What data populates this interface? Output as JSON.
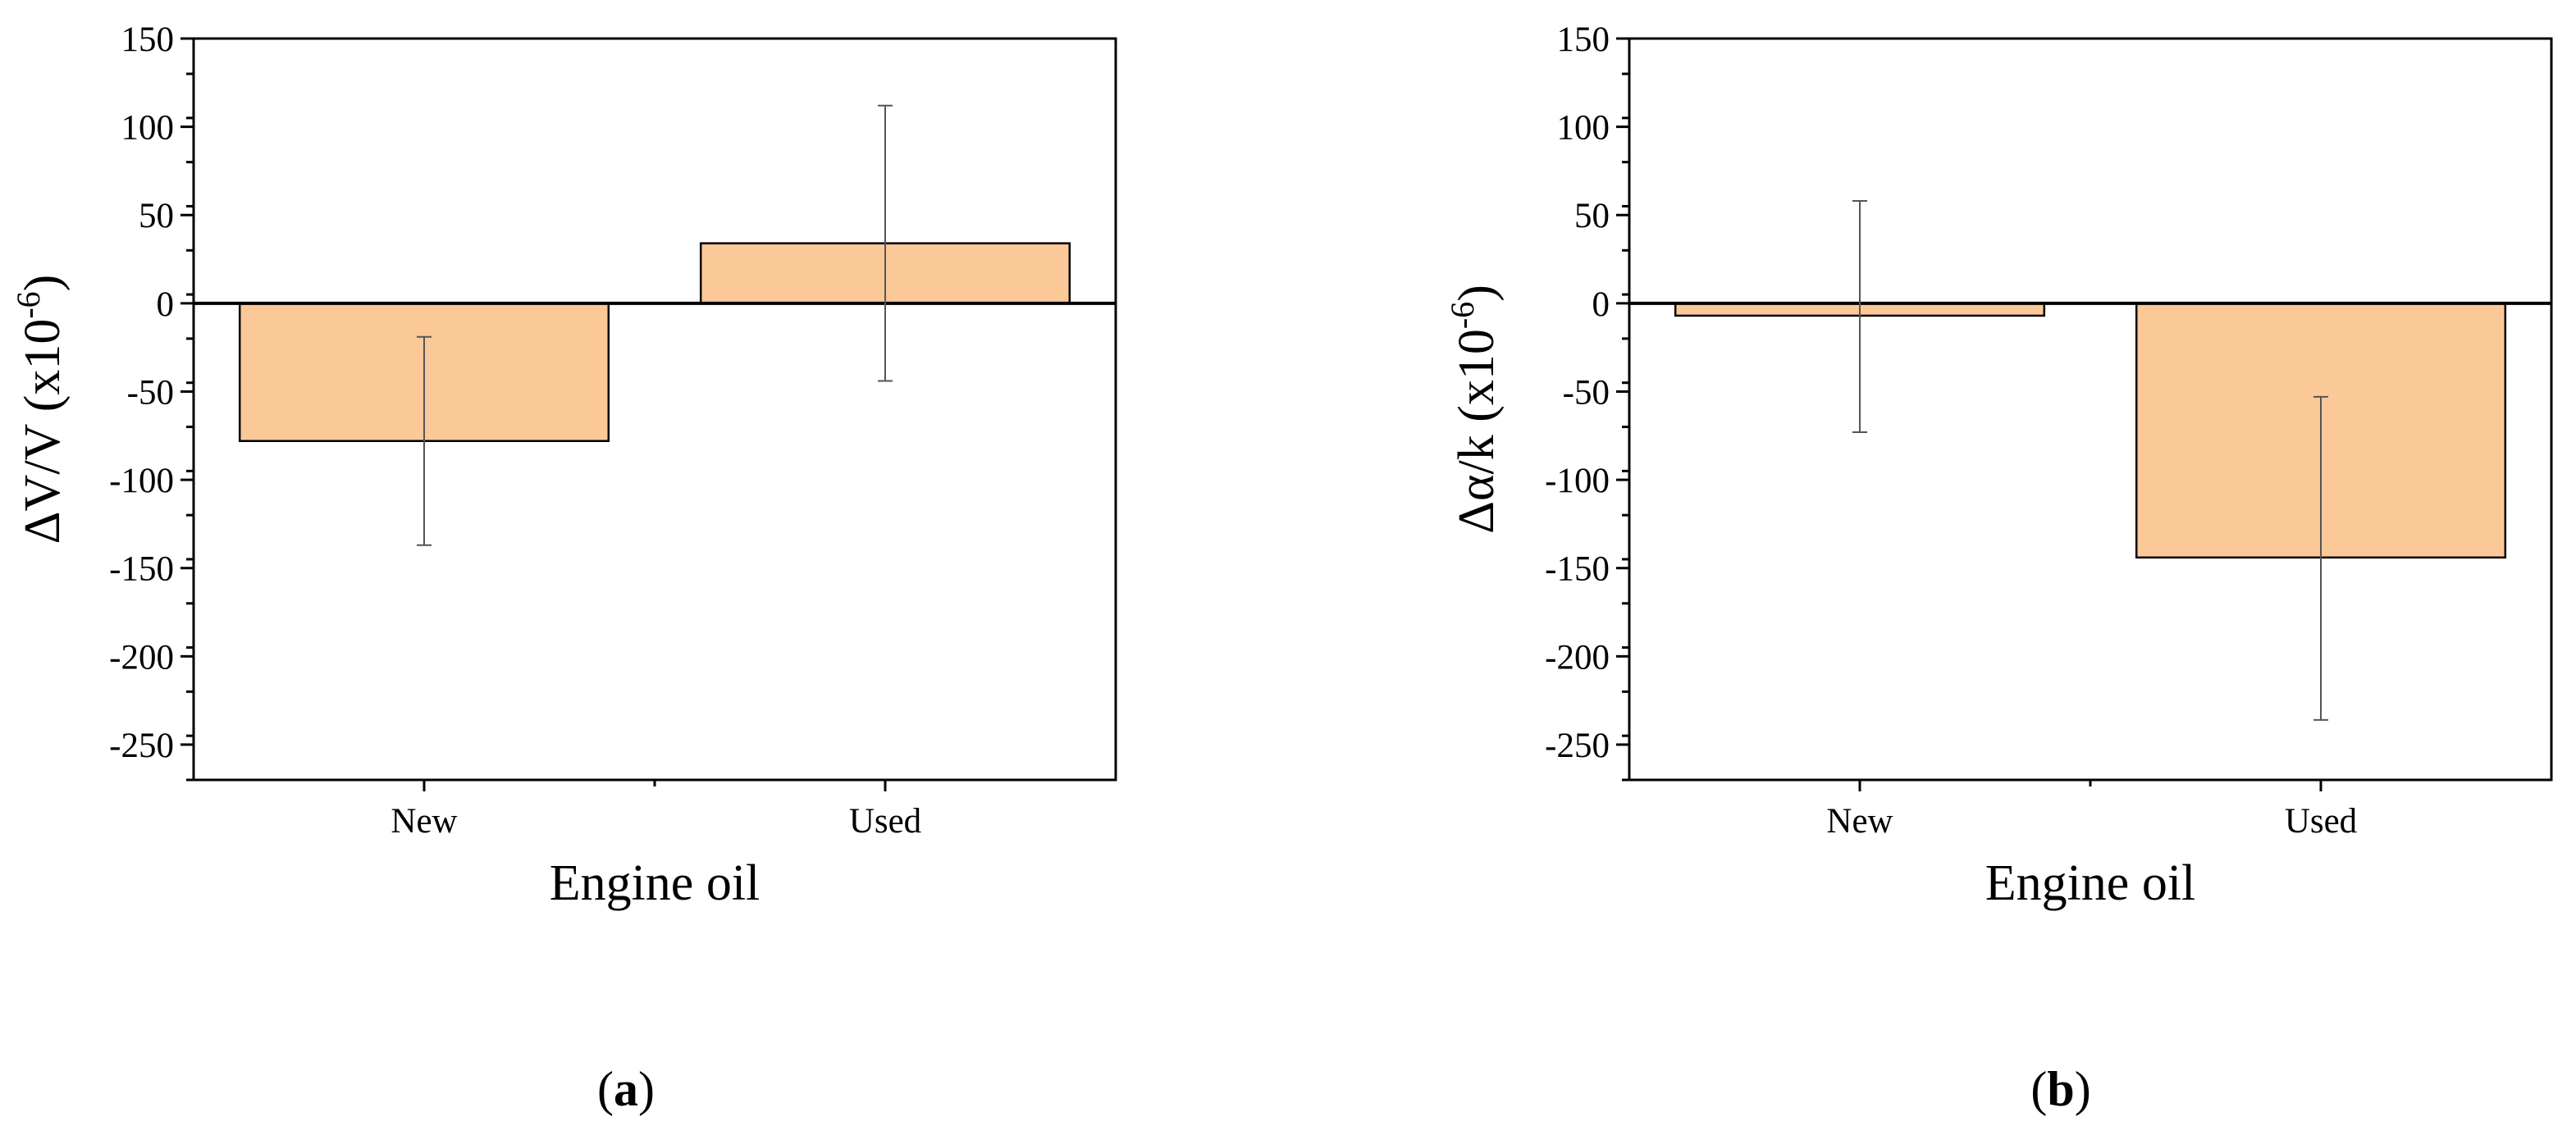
{
  "colors": {
    "bar_fill": "#fbc897",
    "bar_stroke": "#000000",
    "error_bar": "#555555",
    "axis": "#000000"
  },
  "chart_data": [
    {
      "type": "bar",
      "panel_label": "a",
      "categories": [
        "New",
        "Used"
      ],
      "values": [
        -78,
        34
      ],
      "error": [
        [
          -137,
          -19
        ],
        [
          -44,
          112
        ]
      ],
      "xlabel": "Engine oil",
      "ylabel": {
        "base": "ΔV/V (x10",
        "sup": "-6",
        "end": ")"
      },
      "ylim": [
        -270,
        150
      ],
      "yticks": [
        150,
        100,
        50,
        0,
        -50,
        -100,
        -150,
        -200,
        -250
      ],
      "grid": false,
      "legend": "none"
    },
    {
      "type": "bar",
      "panel_label": "b",
      "categories": [
        "New",
        "Used"
      ],
      "values": [
        -7,
        -144
      ],
      "error": [
        [
          -73,
          58
        ],
        [
          -236,
          -53
        ]
      ],
      "xlabel": "Engine oil",
      "ylabel": {
        "base": "Δα/k (x10",
        "sup": "-6",
        "end": ")"
      },
      "ylim": [
        -270,
        150
      ],
      "yticks": [
        150,
        100,
        50,
        0,
        -50,
        -100,
        -150,
        -200,
        -250
      ],
      "grid": false,
      "legend": "none"
    }
  ]
}
